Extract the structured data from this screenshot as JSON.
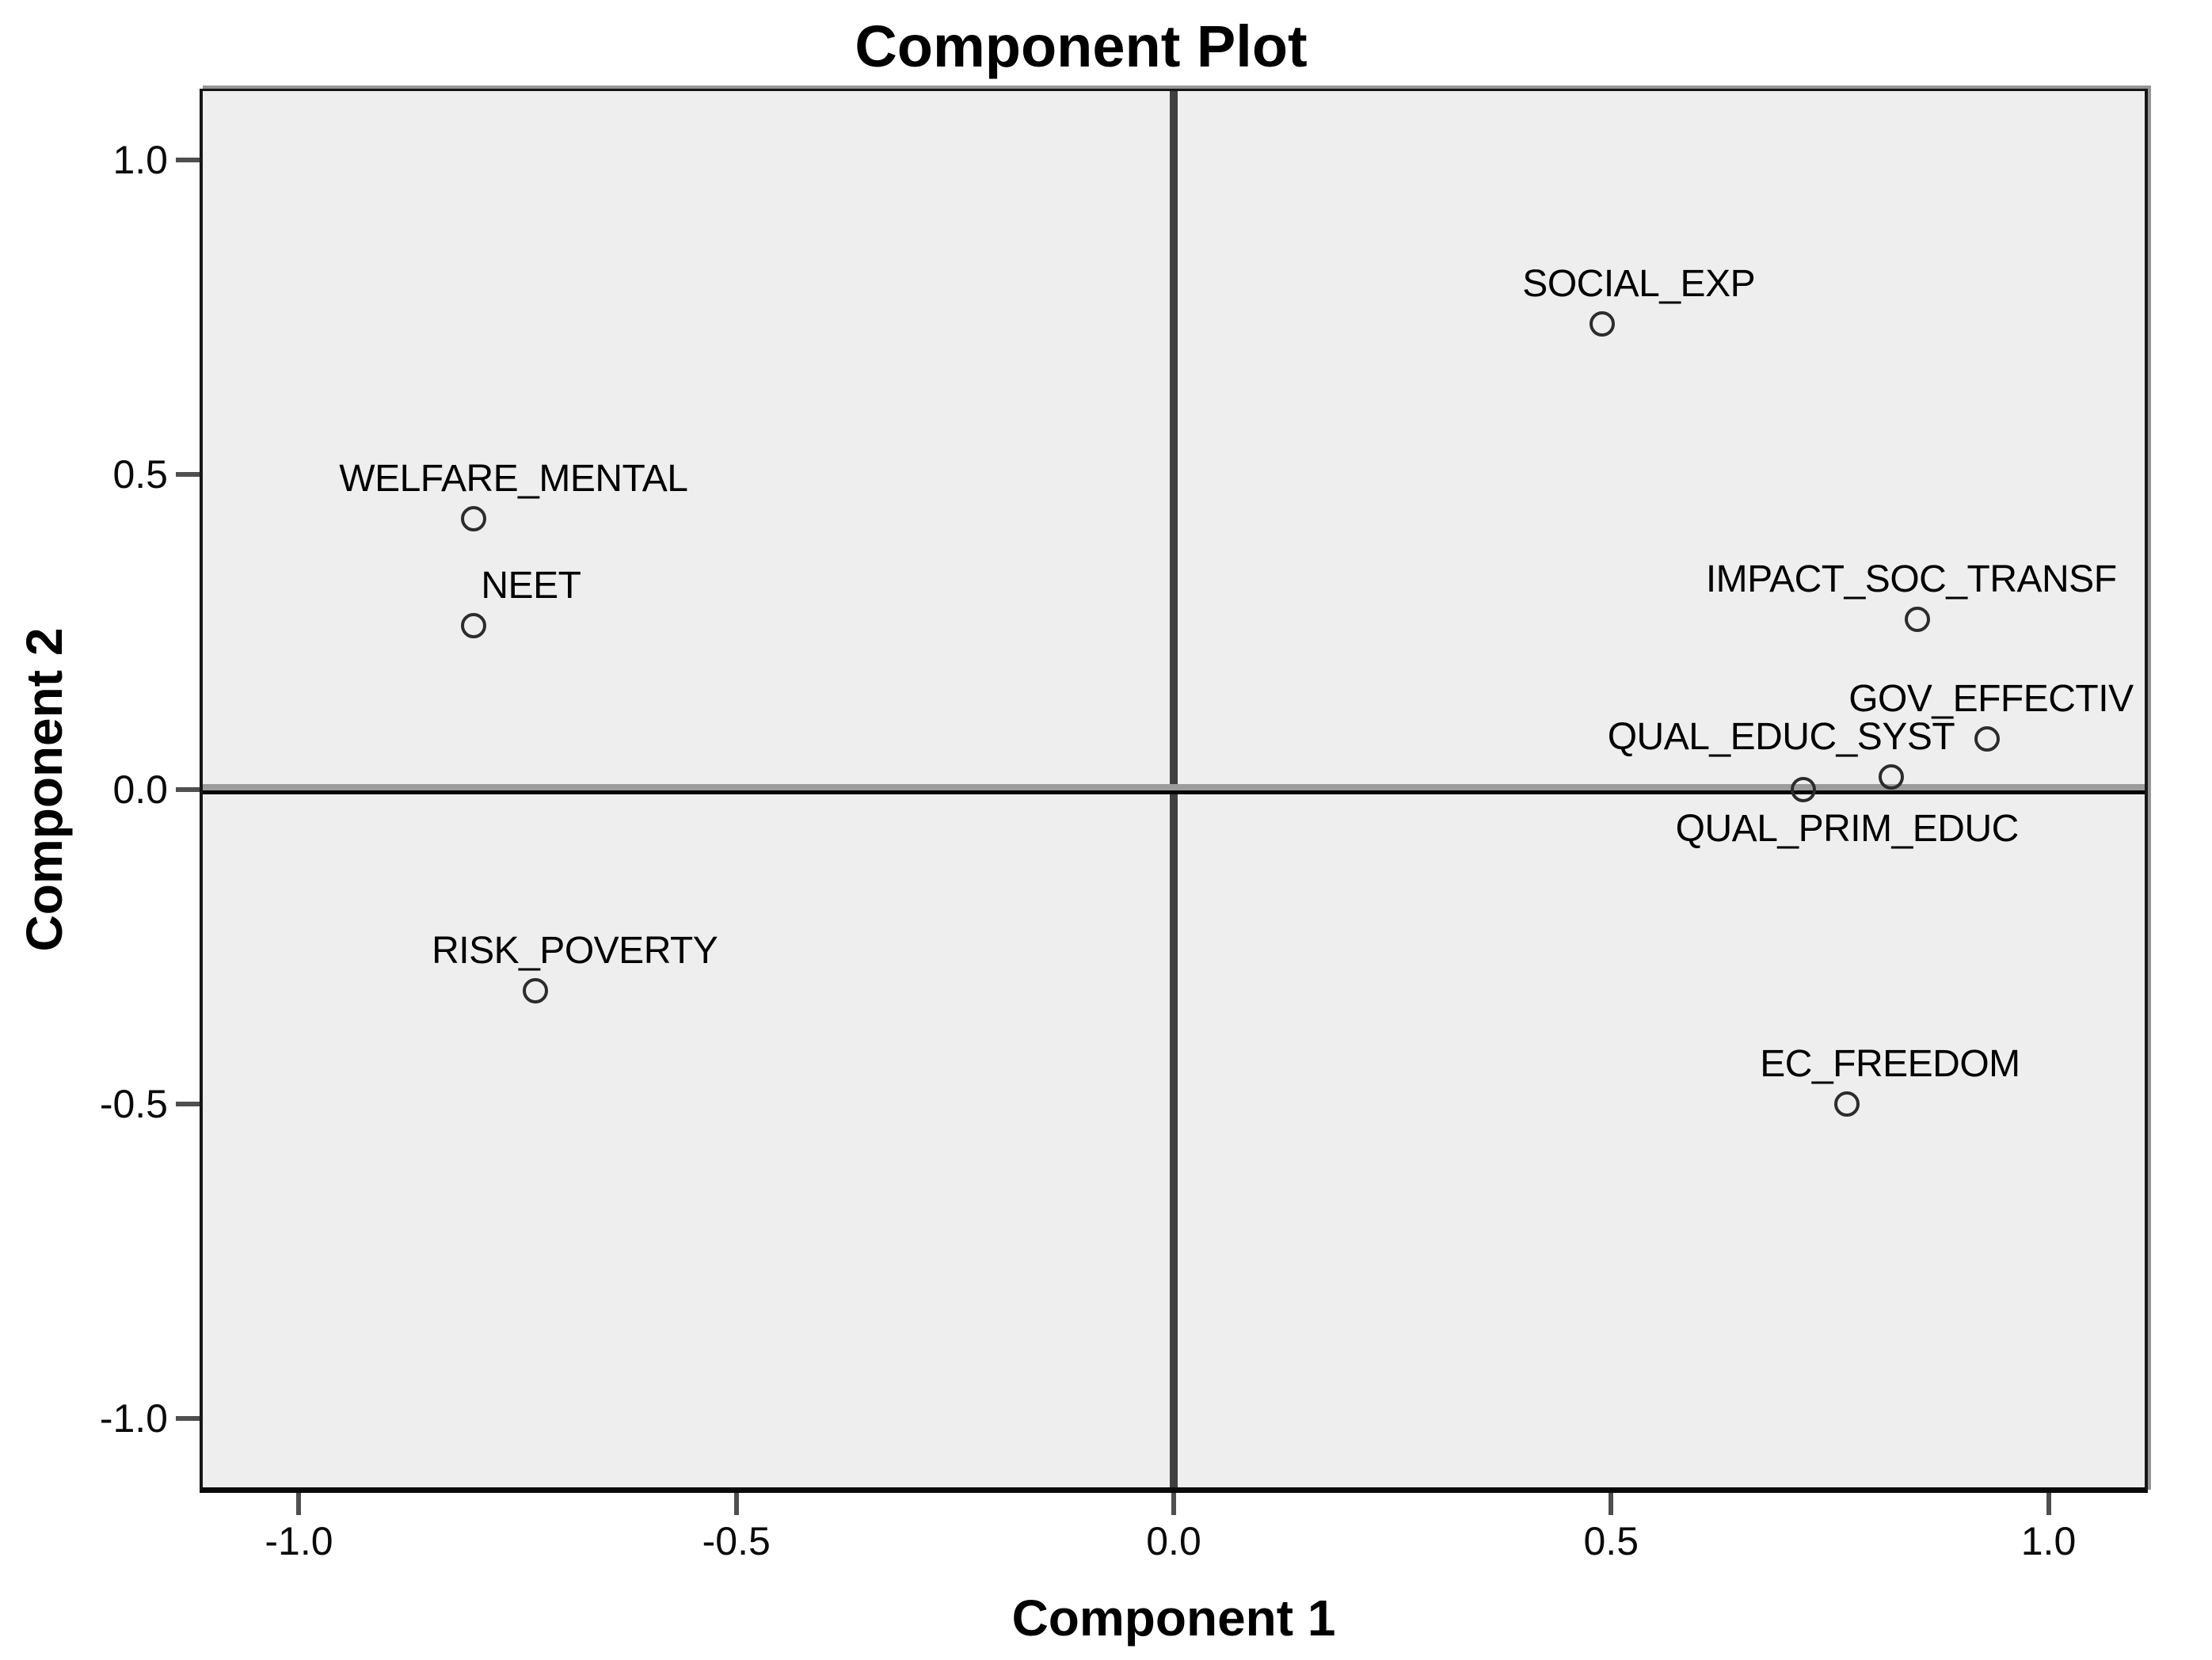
{
  "figure_title": "Component Plot",
  "colors": {
    "plot_background": "#eeeeee",
    "frame": "#161616",
    "frame_shadow": "#959595",
    "zero_line_vertical": "#3f3f3f",
    "zero_line_horizontal_top": "#9c9c9c",
    "zero_line_horizontal_bottom": "#050505",
    "tick": "#4f4f4f",
    "marker_stroke": "#2c2c2c",
    "text": "#000000"
  },
  "chart_data": {
    "type": "scatter",
    "title": "Component Plot",
    "xlabel": "Component 1",
    "ylabel": "Component 2",
    "xlim": [
      -1.11,
      1.11
    ],
    "ylim": [
      -1.11,
      1.11
    ],
    "grid": false,
    "legend": "none",
    "x_ticks": [
      {
        "value": -1.0,
        "label": "-1.0"
      },
      {
        "value": -0.5,
        "label": "-0.5"
      },
      {
        "value": 0.0,
        "label": "0.0"
      },
      {
        "value": 0.5,
        "label": "0.5"
      },
      {
        "value": 1.0,
        "label": "1.0"
      }
    ],
    "y_ticks": [
      {
        "value": 1.0,
        "label": "1.0"
      },
      {
        "value": 0.5,
        "label": "0.5"
      },
      {
        "value": 0.0,
        "label": "0.0"
      },
      {
        "value": -0.5,
        "label": "-0.5"
      },
      {
        "value": -1.0,
        "label": "-1.0"
      }
    ],
    "points": [
      {
        "label": "SOCIAL_EXP",
        "x": 0.49,
        "y": 0.74,
        "label_side": "above",
        "label_align": "center",
        "label_dx": 46
      },
      {
        "label": "WELFARE_MENTAL",
        "x": -0.8,
        "y": 0.43,
        "label_side": "above",
        "label_align": "center",
        "label_dx": 50
      },
      {
        "label": "NEET",
        "x": -0.8,
        "y": 0.26,
        "label_side": "above",
        "label_align": "center",
        "label_dx": 72
      },
      {
        "label": "IMPACT_SOC_TRANSF",
        "x": 0.85,
        "y": 0.27,
        "label_side": "above",
        "label_align": "left",
        "label_dx": -267
      },
      {
        "label": "GOV_EFFECTIV",
        "x": 0.93,
        "y": 0.08,
        "label_side": "above",
        "label_align": "left",
        "label_dx": -175
      },
      {
        "label": "QUAL_EDUC_SYST",
        "x": 0.82,
        "y": 0.02,
        "label_side": "above",
        "label_align": "left",
        "label_dx": -358
      },
      {
        "label": "QUAL_PRIM_EDUC",
        "x": 0.72,
        "y": 0.0,
        "label_side": "below",
        "label_align": "center",
        "label_dx": 55
      },
      {
        "label": "RISK_POVERTY",
        "x": -0.73,
        "y": -0.32,
        "label_side": "above",
        "label_align": "center",
        "label_dx": 50
      },
      {
        "label": "EC_FREEDOM",
        "x": 0.77,
        "y": -0.5,
        "label_side": "above",
        "label_align": "center",
        "label_dx": 54
      }
    ]
  }
}
